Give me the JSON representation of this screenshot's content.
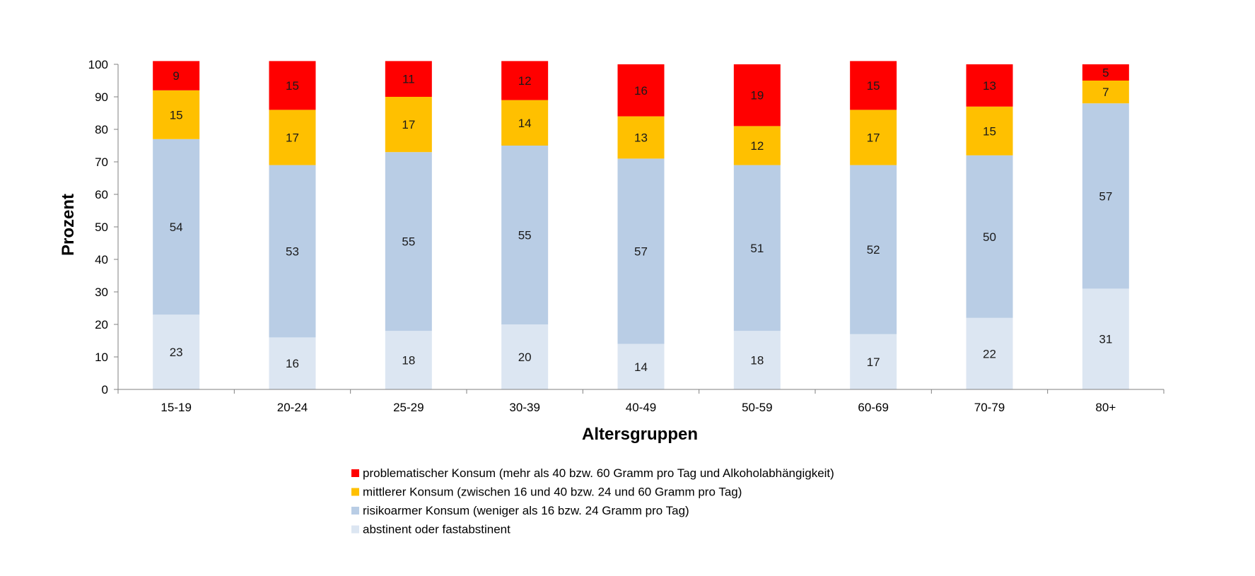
{
  "chart_data": {
    "type": "bar",
    "stacked": true,
    "title": "",
    "xlabel": "Altersgruppen",
    "ylabel": "Prozent",
    "ylim": [
      0,
      100
    ],
    "yticks": [
      0,
      10,
      20,
      30,
      40,
      50,
      60,
      70,
      80,
      90,
      100
    ],
    "categories": [
      "15-19",
      "20-24",
      "25-29",
      "30-39",
      "40-49",
      "50-59",
      "60-69",
      "70-79",
      "80+"
    ],
    "series": [
      {
        "name": "abstinent oder fastabstinent",
        "color": "#dce6f2",
        "values": [
          23,
          16,
          18,
          20,
          14,
          18,
          17,
          22,
          31
        ]
      },
      {
        "name": "risikoarmer Konsum (weniger als 16 bzw. 24 Gramm pro Tag)",
        "color": "#b9cde5",
        "values": [
          54,
          53,
          55,
          55,
          57,
          51,
          52,
          50,
          57
        ]
      },
      {
        "name": "mittlerer Konsum (zwischen 16 und 40 bzw. 24 und 60 Gramm pro Tag)",
        "color": "#ffc000",
        "values": [
          15,
          17,
          17,
          14,
          13,
          12,
          17,
          15,
          7
        ]
      },
      {
        "name": "problematischer Konsum (mehr als 40 bzw. 60 Gramm pro Tag und Alkoholabhängigkeit)",
        "color": "#ff0000",
        "values": [
          9,
          15,
          11,
          12,
          16,
          19,
          15,
          13,
          5
        ]
      }
    ],
    "legend_order": [
      3,
      2,
      1,
      0
    ],
    "legend_position": "bottom",
    "grid": false
  }
}
